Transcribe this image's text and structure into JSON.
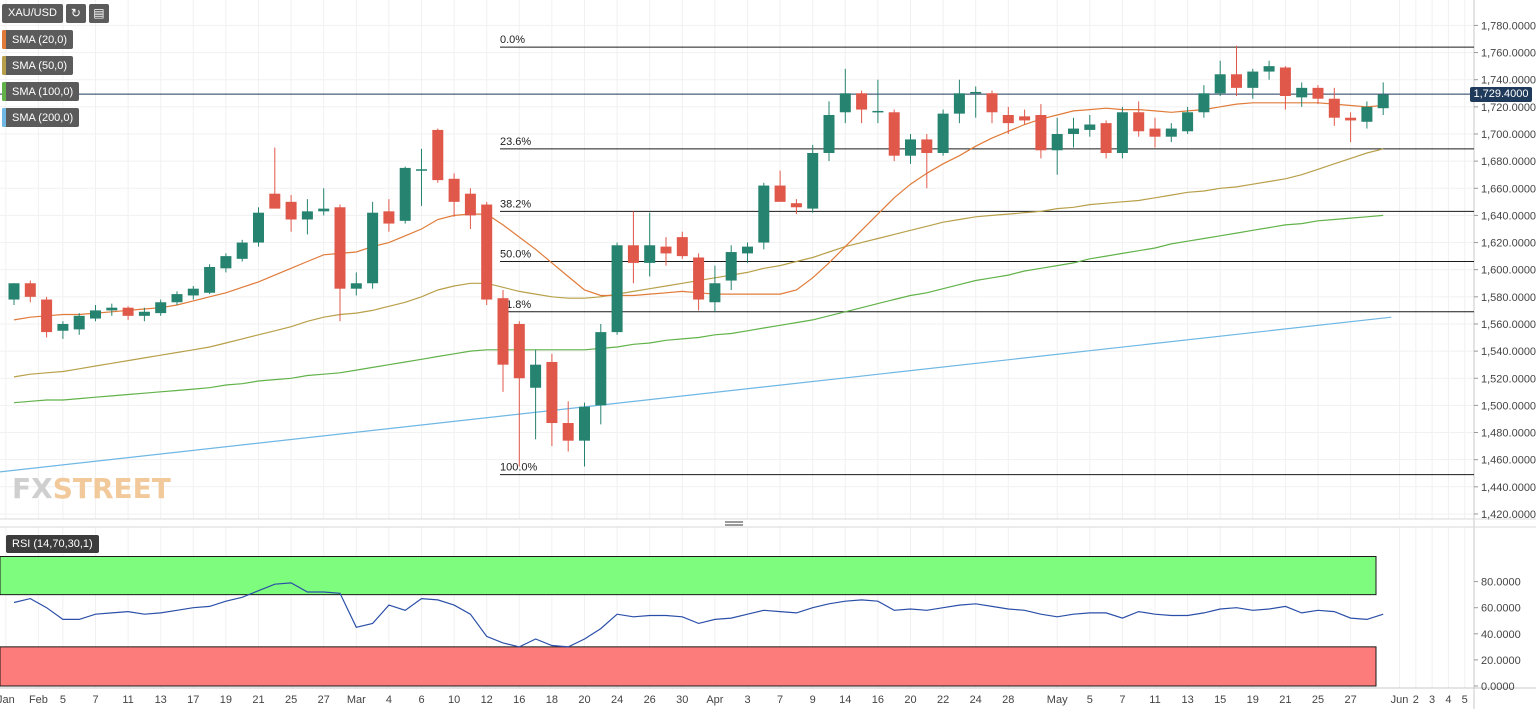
{
  "toolbar": {
    "symbol": "XAU/USD",
    "refresh_icon": "refresh-icon",
    "calendar_icon": "calendar-icon"
  },
  "legends": [
    {
      "label": "SMA (20,0)",
      "color": "#e07b39"
    },
    {
      "label": "SMA (50,0)",
      "color": "#b8a04a"
    },
    {
      "label": "SMA (100,0)",
      "color": "#62b24a"
    },
    {
      "label": "SMA (200,0)",
      "color": "#6fb7e4"
    }
  ],
  "last_price_label": "1,729.4000",
  "logo": {
    "part1": "FX",
    "part2": "STREET"
  },
  "rsi_label": "RSI (14,70,30,1)",
  "colors": {
    "up": "#26836f",
    "down": "#e0584a",
    "rsi_line": "#2b4fa8",
    "overbought": "#7dfc7d",
    "oversold": "#fc7b7b"
  },
  "chart_data": [
    {
      "type": "candlestick",
      "title": "XAU/USD",
      "ylim": [
        1420,
        1790
      ],
      "y_ticks": [
        "1,420.0000",
        "1,440.0000",
        "1,460.0000",
        "1,480.0000",
        "1,500.0000",
        "1,520.0000",
        "1,540.0000",
        "1,560.0000",
        "1,580.0000",
        "1,600.0000",
        "1,620.0000",
        "1,640.0000",
        "1,660.0000",
        "1,680.0000",
        "1,700.0000",
        "1,720.0000",
        "1,740.0000",
        "1,760.0000",
        "1,780.0000"
      ],
      "x_ticks": [
        {
          "label": "Jan",
          "i": -0.5
        },
        {
          "label": "Feb",
          "i": 1.5
        },
        {
          "label": "5",
          "i": 3
        },
        {
          "label": "7",
          "i": 5
        },
        {
          "label": "11",
          "i": 7
        },
        {
          "label": "13",
          "i": 9
        },
        {
          "label": "17",
          "i": 11
        },
        {
          "label": "19",
          "i": 13
        },
        {
          "label": "21",
          "i": 15
        },
        {
          "label": "25",
          "i": 17
        },
        {
          "label": "27",
          "i": 19
        },
        {
          "label": "Mar",
          "i": 21
        },
        {
          "label": "4",
          "i": 23
        },
        {
          "label": "6",
          "i": 25
        },
        {
          "label": "10",
          "i": 27
        },
        {
          "label": "12",
          "i": 29
        },
        {
          "label": "16",
          "i": 31
        },
        {
          "label": "18",
          "i": 33
        },
        {
          "label": "20",
          "i": 35
        },
        {
          "label": "24",
          "i": 37
        },
        {
          "label": "26",
          "i": 39
        },
        {
          "label": "30",
          "i": 41
        },
        {
          "label": "Apr",
          "i": 43
        },
        {
          "label": "3",
          "i": 45
        },
        {
          "label": "7",
          "i": 47
        },
        {
          "label": "9",
          "i": 49
        },
        {
          "label": "14",
          "i": 51
        },
        {
          "label": "16",
          "i": 53
        },
        {
          "label": "20",
          "i": 55
        },
        {
          "label": "22",
          "i": 57
        },
        {
          "label": "24",
          "i": 59
        },
        {
          "label": "28",
          "i": 61
        },
        {
          "label": "May",
          "i": 64
        },
        {
          "label": "5",
          "i": 66
        },
        {
          "label": "7",
          "i": 68
        },
        {
          "label": "11",
          "i": 70
        },
        {
          "label": "13",
          "i": 72
        },
        {
          "label": "15",
          "i": 74
        },
        {
          "label": "19",
          "i": 76
        },
        {
          "label": "21",
          "i": 78
        },
        {
          "label": "25",
          "i": 80
        },
        {
          "label": "27",
          "i": 82
        },
        {
          "label": "Jun",
          "i": 85
        },
        {
          "label": "2",
          "i": 86
        },
        {
          "label": "3",
          "i": 87
        },
        {
          "label": "4",
          "i": 88
        },
        {
          "label": "5",
          "i": 89
        }
      ],
      "candles": [
        {
          "o": 1578,
          "h": 1590,
          "l": 1574,
          "c": 1590
        },
        {
          "o": 1590,
          "h": 1592,
          "l": 1576,
          "c": 1580
        },
        {
          "o": 1578,
          "h": 1580,
          "l": 1550,
          "c": 1554
        },
        {
          "o": 1555,
          "h": 1562,
          "l": 1549,
          "c": 1560
        },
        {
          "o": 1556,
          "h": 1568,
          "l": 1552,
          "c": 1566
        },
        {
          "o": 1564,
          "h": 1574,
          "l": 1562,
          "c": 1570
        },
        {
          "o": 1570,
          "h": 1575,
          "l": 1566,
          "c": 1572
        },
        {
          "o": 1572,
          "h": 1573,
          "l": 1563,
          "c": 1566
        },
        {
          "o": 1566,
          "h": 1572,
          "l": 1562,
          "c": 1569
        },
        {
          "o": 1568,
          "h": 1578,
          "l": 1566,
          "c": 1576
        },
        {
          "o": 1576,
          "h": 1584,
          "l": 1574,
          "c": 1582
        },
        {
          "o": 1581,
          "h": 1588,
          "l": 1578,
          "c": 1586
        },
        {
          "o": 1583,
          "h": 1604,
          "l": 1582,
          "c": 1602
        },
        {
          "o": 1601,
          "h": 1612,
          "l": 1598,
          "c": 1610
        },
        {
          "o": 1608,
          "h": 1622,
          "l": 1606,
          "c": 1620
        },
        {
          "o": 1620,
          "h": 1646,
          "l": 1617,
          "c": 1642
        },
        {
          "o": 1656,
          "h": 1690,
          "l": 1648,
          "c": 1645
        },
        {
          "o": 1650,
          "h": 1655,
          "l": 1628,
          "c": 1637
        },
        {
          "o": 1637,
          "h": 1652,
          "l": 1626,
          "c": 1643
        },
        {
          "o": 1643,
          "h": 1660,
          "l": 1640,
          "c": 1645
        },
        {
          "o": 1646,
          "h": 1648,
          "l": 1562,
          "c": 1586
        },
        {
          "o": 1586,
          "h": 1598,
          "l": 1581,
          "c": 1590
        },
        {
          "o": 1590,
          "h": 1650,
          "l": 1586,
          "c": 1642
        },
        {
          "o": 1643,
          "h": 1652,
          "l": 1628,
          "c": 1634
        },
        {
          "o": 1636,
          "h": 1676,
          "l": 1634,
          "c": 1675
        },
        {
          "o": 1674,
          "h": 1689,
          "l": 1647,
          "c": 1674
        },
        {
          "o": 1703,
          "h": 1704,
          "l": 1664,
          "c": 1666
        },
        {
          "o": 1667,
          "h": 1671,
          "l": 1639,
          "c": 1650
        },
        {
          "o": 1656,
          "h": 1660,
          "l": 1630,
          "c": 1640
        },
        {
          "o": 1648,
          "h": 1650,
          "l": 1574,
          "c": 1578
        },
        {
          "o": 1579,
          "h": 1585,
          "l": 1510,
          "c": 1530
        },
        {
          "o": 1560,
          "h": 1562,
          "l": 1455,
          "c": 1520
        },
        {
          "o": 1513,
          "h": 1541,
          "l": 1475,
          "c": 1530
        },
        {
          "o": 1532,
          "h": 1538,
          "l": 1470,
          "c": 1487
        },
        {
          "o": 1487,
          "h": 1503,
          "l": 1466,
          "c": 1474
        },
        {
          "o": 1474,
          "h": 1502,
          "l": 1455,
          "c": 1499
        },
        {
          "o": 1500,
          "h": 1560,
          "l": 1486,
          "c": 1554
        },
        {
          "o": 1554,
          "h": 1620,
          "l": 1552,
          "c": 1618
        },
        {
          "o": 1618,
          "h": 1643,
          "l": 1590,
          "c": 1605
        },
        {
          "o": 1605,
          "h": 1642,
          "l": 1595,
          "c": 1618
        },
        {
          "o": 1617,
          "h": 1624,
          "l": 1603,
          "c": 1612
        },
        {
          "o": 1624,
          "h": 1628,
          "l": 1608,
          "c": 1610
        },
        {
          "o": 1609,
          "h": 1612,
          "l": 1570,
          "c": 1578
        },
        {
          "o": 1576,
          "h": 1603,
          "l": 1569,
          "c": 1590
        },
        {
          "o": 1592,
          "h": 1618,
          "l": 1585,
          "c": 1613
        },
        {
          "o": 1612,
          "h": 1620,
          "l": 1605,
          "c": 1617
        },
        {
          "o": 1620,
          "h": 1664,
          "l": 1615,
          "c": 1662
        },
        {
          "o": 1662,
          "h": 1673,
          "l": 1652,
          "c": 1650
        },
        {
          "o": 1649,
          "h": 1652,
          "l": 1641,
          "c": 1646
        },
        {
          "o": 1645,
          "h": 1692,
          "l": 1642,
          "c": 1686
        },
        {
          "o": 1686,
          "h": 1724,
          "l": 1680,
          "c": 1714
        },
        {
          "o": 1716,
          "h": 1748,
          "l": 1708,
          "c": 1730
        },
        {
          "o": 1730,
          "h": 1732,
          "l": 1708,
          "c": 1718
        },
        {
          "o": 1717,
          "h": 1740,
          "l": 1708,
          "c": 1717
        },
        {
          "o": 1716,
          "h": 1718,
          "l": 1680,
          "c": 1684
        },
        {
          "o": 1684,
          "h": 1700,
          "l": 1678,
          "c": 1696
        },
        {
          "o": 1696,
          "h": 1700,
          "l": 1660,
          "c": 1686
        },
        {
          "o": 1686,
          "h": 1718,
          "l": 1684,
          "c": 1715
        },
        {
          "o": 1715,
          "h": 1740,
          "l": 1708,
          "c": 1730
        },
        {
          "o": 1730,
          "h": 1735,
          "l": 1712,
          "c": 1731
        },
        {
          "o": 1730,
          "h": 1732,
          "l": 1708,
          "c": 1716
        },
        {
          "o": 1714,
          "h": 1720,
          "l": 1700,
          "c": 1708
        },
        {
          "o": 1713,
          "h": 1718,
          "l": 1707,
          "c": 1710
        },
        {
          "o": 1714,
          "h": 1722,
          "l": 1682,
          "c": 1688
        },
        {
          "o": 1688,
          "h": 1712,
          "l": 1670,
          "c": 1700
        },
        {
          "o": 1700,
          "h": 1712,
          "l": 1690,
          "c": 1704
        },
        {
          "o": 1703,
          "h": 1714,
          "l": 1698,
          "c": 1707
        },
        {
          "o": 1708,
          "h": 1710,
          "l": 1682,
          "c": 1686
        },
        {
          "o": 1686,
          "h": 1720,
          "l": 1682,
          "c": 1716
        },
        {
          "o": 1716,
          "h": 1724,
          "l": 1698,
          "c": 1702
        },
        {
          "o": 1704,
          "h": 1712,
          "l": 1690,
          "c": 1698
        },
        {
          "o": 1698,
          "h": 1708,
          "l": 1694,
          "c": 1704
        },
        {
          "o": 1702,
          "h": 1720,
          "l": 1700,
          "c": 1716
        },
        {
          "o": 1716,
          "h": 1736,
          "l": 1712,
          "c": 1730
        },
        {
          "o": 1730,
          "h": 1754,
          "l": 1728,
          "c": 1744
        },
        {
          "o": 1744,
          "h": 1765,
          "l": 1728,
          "c": 1734
        },
        {
          "o": 1734,
          "h": 1748,
          "l": 1726,
          "c": 1746
        },
        {
          "o": 1746,
          "h": 1754,
          "l": 1740,
          "c": 1750
        },
        {
          "o": 1749,
          "h": 1750,
          "l": 1718,
          "c": 1728
        },
        {
          "o": 1727,
          "h": 1738,
          "l": 1720,
          "c": 1734
        },
        {
          "o": 1734,
          "h": 1736,
          "l": 1722,
          "c": 1726
        },
        {
          "o": 1726,
          "h": 1734,
          "l": 1706,
          "c": 1712
        },
        {
          "o": 1712,
          "h": 1716,
          "l": 1694,
          "c": 1710
        },
        {
          "o": 1709,
          "h": 1724,
          "l": 1704,
          "c": 1720
        },
        {
          "o": 1719,
          "h": 1738,
          "l": 1714,
          "c": 1729
        }
      ],
      "sma20": [
        1563,
        1565,
        1566,
        1567,
        1567,
        1568,
        1569,
        1570,
        1571,
        1572,
        1574,
        1577,
        1580,
        1583,
        1587,
        1591,
        1596,
        1601,
        1606,
        1611,
        1612,
        1613,
        1617,
        1620,
        1625,
        1630,
        1637,
        1640,
        1641,
        1641,
        1633,
        1624,
        1615,
        1605,
        1595,
        1585,
        1581,
        1581,
        1581,
        1582,
        1583,
        1584,
        1583,
        1582,
        1582,
        1582,
        1582,
        1582,
        1585,
        1594,
        1605,
        1617,
        1629,
        1641,
        1653,
        1663,
        1671,
        1678,
        1684,
        1691,
        1697,
        1702,
        1707,
        1711,
        1714,
        1717,
        1718,
        1719,
        1718,
        1718,
        1717,
        1716,
        1717,
        1718,
        1720,
        1722,
        1723,
        1723,
        1723,
        1723,
        1723,
        1722,
        1721,
        1720,
        1721
      ],
      "sma50": [
        1521,
        1523,
        1524,
        1525,
        1527,
        1529,
        1531,
        1533,
        1535,
        1537,
        1539,
        1541,
        1543,
        1546,
        1549,
        1552,
        1555,
        1558,
        1562,
        1565,
        1567,
        1568,
        1570,
        1573,
        1576,
        1580,
        1585,
        1588,
        1590,
        1590,
        1587,
        1584,
        1582,
        1580,
        1579,
        1579,
        1580,
        1582,
        1584,
        1586,
        1588,
        1590,
        1592,
        1594,
        1596,
        1598,
        1601,
        1603,
        1606,
        1609,
        1613,
        1617,
        1620,
        1623,
        1626,
        1629,
        1632,
        1635,
        1637,
        1639,
        1640,
        1641,
        1642,
        1643,
        1645,
        1646,
        1648,
        1649,
        1650,
        1651,
        1653,
        1655,
        1657,
        1658,
        1660,
        1661,
        1663,
        1665,
        1667,
        1670,
        1674,
        1678,
        1682,
        1686,
        1689
      ],
      "sma100": [
        1502,
        1503,
        1504,
        1504,
        1505,
        1506,
        1507,
        1508,
        1509,
        1510,
        1511,
        1512,
        1513,
        1515,
        1516,
        1518,
        1519,
        1520,
        1522,
        1523,
        1524,
        1526,
        1528,
        1530,
        1532,
        1534,
        1536,
        1538,
        1540,
        1541,
        1541,
        1541,
        1541,
        1541,
        1541,
        1541,
        1542,
        1543,
        1545,
        1546,
        1548,
        1549,
        1550,
        1552,
        1553,
        1555,
        1557,
        1559,
        1561,
        1563,
        1566,
        1569,
        1572,
        1575,
        1578,
        1581,
        1583,
        1586,
        1589,
        1592,
        1594,
        1596,
        1599,
        1601,
        1603,
        1605,
        1608,
        1610,
        1612,
        1614,
        1616,
        1619,
        1621,
        1623,
        1625,
        1627,
        1629,
        1631,
        1633,
        1634,
        1636,
        1637,
        1638,
        1639,
        1640
      ],
      "sma200_start": 1451,
      "sma200_end": 1565,
      "fibs": [
        {
          "label": "0.0%",
          "v": 1764
        },
        {
          "label": "23.6%",
          "v": 1689
        },
        {
          "label": "38.2%",
          "v": 1643
        },
        {
          "label": "50.0%",
          "v": 1606
        },
        {
          "label": "61.8%",
          "v": 1569
        },
        {
          "label": "100.0%",
          "v": 1449
        }
      ],
      "current_price_line": 1729.4
    },
    {
      "type": "line",
      "title": "RSI (14,70,30,1)",
      "ylim": [
        0,
        100
      ],
      "y_ticks": [
        "0.0000",
        "20.0000",
        "40.0000",
        "60.0000",
        "80.0000"
      ],
      "overbought": 70,
      "oversold": 30,
      "values": [
        64,
        67,
        60,
        51,
        51,
        55,
        56,
        57,
        55,
        56,
        58,
        60,
        61,
        65,
        68,
        73,
        78,
        79,
        72,
        72,
        71,
        45,
        48,
        62,
        58,
        67,
        66,
        62,
        55,
        38,
        33,
        30,
        36,
        31,
        30,
        36,
        44,
        55,
        53,
        54,
        54,
        53,
        48,
        51,
        52,
        55,
        58,
        57,
        56,
        60,
        63,
        65,
        66,
        65,
        58,
        59,
        58,
        60,
        62,
        63,
        61,
        59,
        58,
        55,
        53,
        55,
        56,
        56,
        52,
        57,
        55,
        54,
        54,
        56,
        59,
        60,
        58,
        59,
        61,
        56,
        58,
        57,
        52,
        51,
        55
      ]
    }
  ]
}
